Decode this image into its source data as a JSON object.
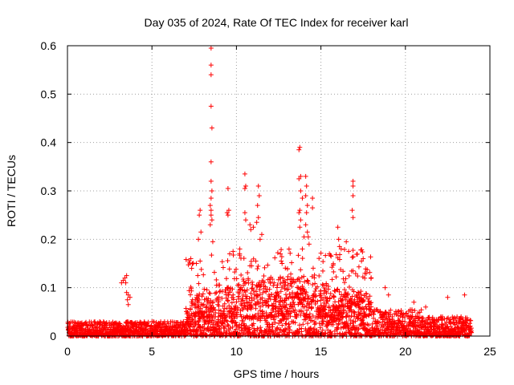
{
  "chart_data": {
    "type": "scatter",
    "title": "Day 035 of 2024, Rate Of TEC Index for receiver karl",
    "xlabel": "GPS time / hours",
    "ylabel": "ROTI / TECUs",
    "xlim": [
      0,
      25
    ],
    "ylim": [
      0,
      0.6
    ],
    "xticks": [
      0,
      5,
      10,
      15,
      20,
      25
    ],
    "yticks": [
      0,
      0.1,
      0.2,
      0.3,
      0.4,
      0.5,
      0.6
    ],
    "xtick_labels": [
      "0",
      "5",
      "10",
      "15",
      "20",
      "25"
    ],
    "ytick_labels": [
      "0",
      "0.1",
      "0.2",
      "0.3",
      "0.4",
      "0.5",
      "0.6"
    ],
    "grid": true,
    "marker": "+",
    "color": "#ff0000",
    "series": [
      {
        "name": "ROTI",
        "points": [
          [
            8.5,
            0.595
          ],
          [
            8.5,
            0.56
          ],
          [
            8.5,
            0.54
          ],
          [
            8.5,
            0.475
          ],
          [
            8.55,
            0.43
          ],
          [
            8.5,
            0.36
          ],
          [
            8.5,
            0.32
          ],
          [
            8.55,
            0.3
          ],
          [
            8.5,
            0.285
          ],
          [
            8.45,
            0.27
          ],
          [
            8.5,
            0.26
          ],
          [
            8.5,
            0.25
          ],
          [
            8.55,
            0.24
          ],
          [
            8.45,
            0.23
          ],
          [
            8.6,
            0.195
          ],
          [
            7.85,
            0.26
          ],
          [
            7.8,
            0.25
          ],
          [
            7.9,
            0.215
          ],
          [
            7.75,
            0.2
          ],
          [
            7.85,
            0.155
          ],
          [
            9.5,
            0.305
          ],
          [
            9.55,
            0.26
          ],
          [
            9.5,
            0.25
          ],
          [
            9.45,
            0.255
          ],
          [
            10.5,
            0.335
          ],
          [
            10.5,
            0.305
          ],
          [
            10.55,
            0.31
          ],
          [
            10.5,
            0.255
          ],
          [
            10.55,
            0.24
          ],
          [
            11.3,
            0.31
          ],
          [
            11.35,
            0.29
          ],
          [
            11.25,
            0.27
          ],
          [
            11.3,
            0.245
          ],
          [
            11.2,
            0.235
          ],
          [
            10.8,
            0.23
          ],
          [
            10.85,
            0.22
          ],
          [
            11.0,
            0.225
          ],
          [
            11.4,
            0.2
          ],
          [
            11.5,
            0.21
          ],
          [
            13.7,
            0.385
          ],
          [
            13.75,
            0.39
          ],
          [
            13.8,
            0.33
          ],
          [
            13.7,
            0.325
          ],
          [
            13.8,
            0.3
          ],
          [
            13.75,
            0.26
          ],
          [
            13.7,
            0.255
          ],
          [
            13.8,
            0.24
          ],
          [
            13.75,
            0.225
          ],
          [
            14.1,
            0.33
          ],
          [
            14.15,
            0.31
          ],
          [
            14.1,
            0.29
          ],
          [
            14.2,
            0.27
          ],
          [
            14.15,
            0.255
          ],
          [
            14.5,
            0.285
          ],
          [
            14.5,
            0.265
          ],
          [
            14.1,
            0.23
          ],
          [
            14.2,
            0.215
          ],
          [
            14.3,
            0.19
          ],
          [
            14.0,
            0.205
          ],
          [
            14.25,
            0.205
          ],
          [
            13.9,
            0.285
          ],
          [
            13.9,
            0.18
          ],
          [
            16.9,
            0.32
          ],
          [
            16.9,
            0.31
          ],
          [
            16.9,
            0.29
          ],
          [
            16.85,
            0.26
          ],
          [
            16.9,
            0.245
          ],
          [
            16.0,
            0.225
          ],
          [
            16.05,
            0.2
          ],
          [
            16.1,
            0.185
          ],
          [
            16.2,
            0.18
          ],
          [
            16.5,
            0.195
          ],
          [
            7.3,
            0.16
          ],
          [
            7.35,
            0.14
          ],
          [
            9.6,
            0.17
          ],
          [
            9.8,
            0.175
          ],
          [
            10.2,
            0.18
          ],
          [
            12.6,
            0.17
          ],
          [
            12.65,
            0.155
          ],
          [
            12.7,
            0.15
          ],
          [
            15.5,
            0.17
          ],
          [
            15.6,
            0.165
          ],
          [
            17.5,
            0.16
          ],
          [
            17.4,
            0.155
          ],
          [
            18.8,
            0.1
          ],
          [
            19.0,
            0.085
          ],
          [
            3.2,
            0.11
          ],
          [
            3.3,
            0.115
          ],
          [
            3.4,
            0.12
          ],
          [
            3.5,
            0.125
          ],
          [
            3.45,
            0.11
          ],
          [
            3.5,
            0.09
          ],
          [
            3.6,
            0.085
          ],
          [
            3.7,
            0.08
          ],
          [
            3.55,
            0.075
          ],
          [
            3.6,
            0.065
          ],
          [
            22.5,
            0.08
          ],
          [
            23.5,
            0.085
          ],
          [
            20.5,
            0.07
          ],
          [
            21.2,
            0.06
          ]
        ]
      }
    ]
  }
}
